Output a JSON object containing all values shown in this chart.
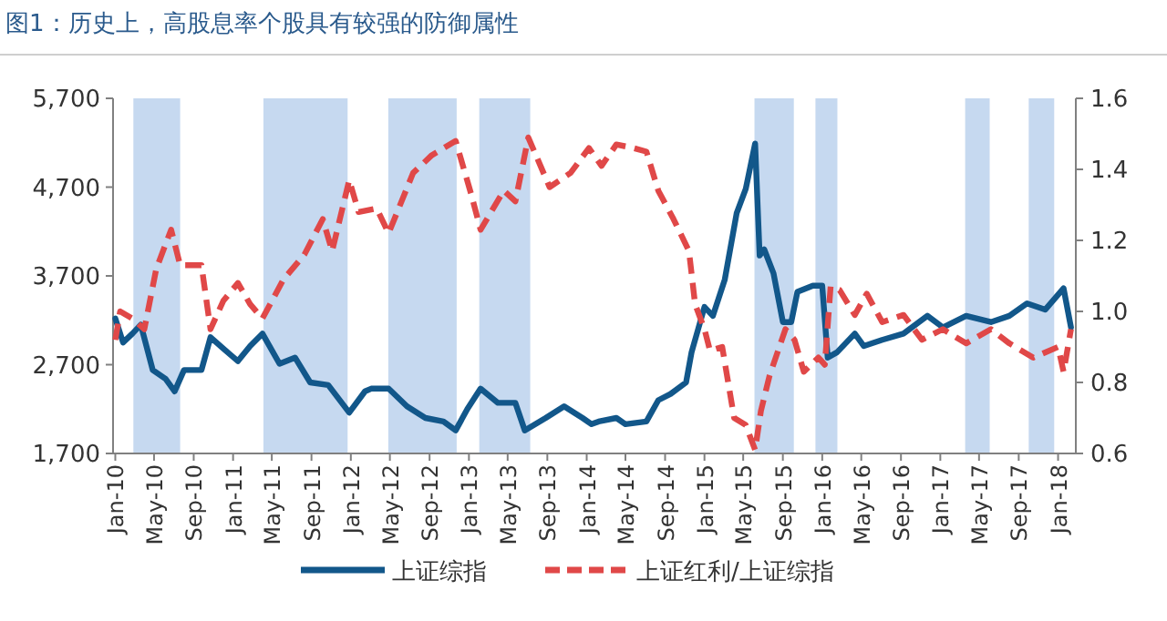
{
  "chart_data": {
    "type": "line",
    "title": "图1：历史上，高股息率个股具有较强的防御属性",
    "xlim": [
      "2009-12-25",
      "2018-02-25"
    ],
    "xticks": [
      {
        "value": "2010-01",
        "label": "Jan-10"
      },
      {
        "value": "2010-05",
        "label": "May-10"
      },
      {
        "value": "2010-09",
        "label": "Sep-10"
      },
      {
        "value": "2011-01",
        "label": "Jan-11"
      },
      {
        "value": "2011-05",
        "label": "May-11"
      },
      {
        "value": "2011-09",
        "label": "Sep-11"
      },
      {
        "value": "2012-01",
        "label": "Jan-12"
      },
      {
        "value": "2012-05",
        "label": "May-12"
      },
      {
        "value": "2012-09",
        "label": "Sep-12"
      },
      {
        "value": "2013-01",
        "label": "Jan-13"
      },
      {
        "value": "2013-05",
        "label": "May-13"
      },
      {
        "value": "2013-09",
        "label": "Sep-13"
      },
      {
        "value": "2014-01",
        "label": "Jan-14"
      },
      {
        "value": "2014-05",
        "label": "May-14"
      },
      {
        "value": "2014-09",
        "label": "Sep-14"
      },
      {
        "value": "2015-01",
        "label": "Jan-15"
      },
      {
        "value": "2015-05",
        "label": "May-15"
      },
      {
        "value": "2015-09",
        "label": "Sep-15"
      },
      {
        "value": "2016-01",
        "label": "Jan-16"
      },
      {
        "value": "2016-05",
        "label": "May-16"
      },
      {
        "value": "2016-09",
        "label": "Sep-16"
      },
      {
        "value": "2017-01",
        "label": "Jan-17"
      },
      {
        "value": "2017-05",
        "label": "May-17"
      },
      {
        "value": "2017-09",
        "label": "Sep-17"
      },
      {
        "value": "2018-01",
        "label": "Jan-18"
      }
    ],
    "ylim": [
      1700,
      5700
    ],
    "yticks": [
      {
        "value": 1700,
        "label": "1,700"
      },
      {
        "value": 2700,
        "label": "2,700"
      },
      {
        "value": 3700,
        "label": "3,700"
      },
      {
        "value": 4700,
        "label": "4,700"
      },
      {
        "value": 5700,
        "label": "5,700"
      }
    ],
    "y2lim": [
      0.6,
      1.6
    ],
    "y2ticks": [
      0.6,
      0.8,
      {
        "value": 1,
        "label": "1.0"
      },
      1.2,
      1.4,
      1.6
    ],
    "legend": "bottom",
    "marker": "none",
    "bands": [
      {
        "axis": "x",
        "from": "2010-02-26",
        "to": "2010-07-21",
        "color": "#c6d9f0"
      },
      {
        "axis": "x",
        "from": "2011-04-05",
        "to": "2011-12-22",
        "color": "#c6d9f0"
      },
      {
        "axis": "x",
        "from": "2012-04-26",
        "to": "2012-11-24",
        "color": "#c6d9f0"
      },
      {
        "axis": "x",
        "from": "2013-02-02",
        "to": "2013-07-10",
        "color": "#c6d9f0"
      },
      {
        "axis": "x",
        "from": "2015-06-05",
        "to": "2015-10-05",
        "color": "#c6d9f0"
      },
      {
        "axis": "x",
        "from": "2015-12-11",
        "to": "2016-02-17",
        "color": "#c6d9f0"
      },
      {
        "axis": "x",
        "from": "2017-03-19",
        "to": "2017-06-03",
        "color": "#c6d9f0"
      },
      {
        "axis": "x",
        "from": "2017-10-02",
        "to": "2017-12-20",
        "color": "#c6d9f0"
      }
    ],
    "series": [
      {
        "name": "上证综指",
        "color": "#12578a",
        "line_style": "solid",
        "x": [
          "2010-01-01",
          "2010-01-25",
          "2010-02-23",
          "2010-03-21",
          "2010-04-27",
          "2010-06-06",
          "2010-07-04",
          "2010-08-02",
          "2010-09-25",
          "2010-10-23",
          "2010-12-02",
          "2011-01-16",
          "2011-02-23",
          "2011-04-02",
          "2011-05-25",
          "2011-07-12",
          "2011-08-28",
          "2011-10-23",
          "2011-12-27",
          "2012-02-14",
          "2012-03-04",
          "2012-04-27",
          "2012-06-23",
          "2012-08-19",
          "2012-10-14",
          "2012-11-21",
          "2012-12-27",
          "2013-02-06",
          "2013-04-01",
          "2013-05-25",
          "2013-06-23",
          "2013-08-27",
          "2013-10-23",
          "2013-12-19",
          "2014-01-16",
          "2014-02-07",
          "2014-04-03",
          "2014-05-01",
          "2014-07-05",
          "2014-08-11",
          "2014-09-18",
          "2014-11-05",
          "2014-11-22",
          "2015-01-01",
          "2015-01-27",
          "2015-03-05",
          "2015-04-11",
          "2015-05-09",
          "2015-06-07",
          "2015-06-21",
          "2015-07-05",
          "2015-08-03",
          "2015-09-01",
          "2015-09-27",
          "2015-10-16",
          "2015-12-03",
          "2016-01-01",
          "2016-01-18",
          "2016-02-16",
          "2016-04-11",
          "2016-05-09",
          "2016-07-05",
          "2016-09-09",
          "2016-11-22",
          "2017-01-09",
          "2017-03-22",
          "2017-06-07",
          "2017-08-03",
          "2017-09-27",
          "2017-11-22",
          "2018-01-18",
          "2018-02-10"
        ],
        "values": [
          3220,
          2950,
          3050,
          3150,
          2640,
          2540,
          2400,
          2640,
          2640,
          3010,
          2880,
          2740,
          2910,
          3050,
          2710,
          2780,
          2500,
          2470,
          2160,
          2400,
          2430,
          2430,
          2230,
          2100,
          2060,
          1960,
          2200,
          2430,
          2270,
          2270,
          1960,
          2100,
          2230,
          2100,
          2030,
          2060,
          2100,
          2030,
          2060,
          2300,
          2370,
          2500,
          2840,
          3350,
          3250,
          3660,
          4410,
          4680,
          5190,
          3930,
          4000,
          3730,
          3180,
          3180,
          3520,
          3590,
          3590,
          2780,
          2840,
          3050,
          2910,
          2980,
          3050,
          3250,
          3120,
          3250,
          3180,
          3250,
          3390,
          3320,
          3560,
          3120
        ]
      },
      {
        "name": "上证红利/上证综指",
        "color": "#e04848",
        "line_style": "dashed",
        "axis": "y2",
        "x": [
          "2010-01-01",
          "2010-01-16",
          "2010-02-23",
          "2010-04-01",
          "2010-05-08",
          "2010-06-23",
          "2010-07-21",
          "2010-09-25",
          "2010-10-23",
          "2010-12-02",
          "2011-01-16",
          "2011-02-23",
          "2011-04-02",
          "2011-06-06",
          "2011-08-10",
          "2011-10-06",
          "2011-11-04",
          "2011-12-27",
          "2012-01-25",
          "2012-03-21",
          "2012-04-27",
          "2012-07-12",
          "2012-09-08",
          "2012-11-21",
          "2013-01-08",
          "2013-02-06",
          "2013-04-19",
          "2013-05-25",
          "2013-07-04",
          "2013-09-08",
          "2013-11-12",
          "2014-01-08",
          "2014-02-16",
          "2014-04-03",
          "2014-05-27",
          "2014-07-05",
          "2014-08-11",
          "2014-09-27",
          "2014-11-14",
          "2014-12-03",
          "2015-01-01",
          "2015-01-18",
          "2015-02-25",
          "2015-04-03",
          "2015-05-09",
          "2015-06-07",
          "2015-06-25",
          "2015-07-22",
          "2015-09-09",
          "2015-10-07",
          "2015-11-05",
          "2015-12-20",
          "2016-01-09",
          "2016-01-27",
          "2016-02-24",
          "2016-04-11",
          "2016-05-18",
          "2016-07-05",
          "2016-09-09",
          "2016-11-05",
          "2017-01-09",
          "2017-03-22",
          "2017-06-07",
          "2017-08-03",
          "2017-10-16",
          "2018-01-01",
          "2018-01-18",
          "2018-02-10"
        ],
        "values": [
          0.92,
          1.0,
          0.98,
          0.95,
          1.12,
          1.23,
          1.13,
          1.13,
          0.95,
          1.03,
          1.08,
          1.02,
          0.98,
          1.09,
          1.16,
          1.26,
          1.17,
          1.37,
          1.28,
          1.29,
          1.22,
          1.39,
          1.44,
          1.48,
          1.33,
          1.23,
          1.34,
          1.31,
          1.49,
          1.35,
          1.39,
          1.46,
          1.41,
          1.47,
          1.46,
          1.45,
          1.34,
          1.26,
          1.17,
          1.02,
          0.95,
          0.89,
          0.9,
          0.7,
          0.68,
          0.61,
          0.72,
          0.82,
          0.95,
          0.92,
          0.83,
          0.87,
          0.85,
          1.07,
          1.06,
          0.99,
          1.05,
          0.97,
          0.99,
          0.92,
          0.95,
          0.91,
          0.95,
          0.91,
          0.87,
          0.9,
          0.83,
          0.95
        ]
      }
    ]
  }
}
